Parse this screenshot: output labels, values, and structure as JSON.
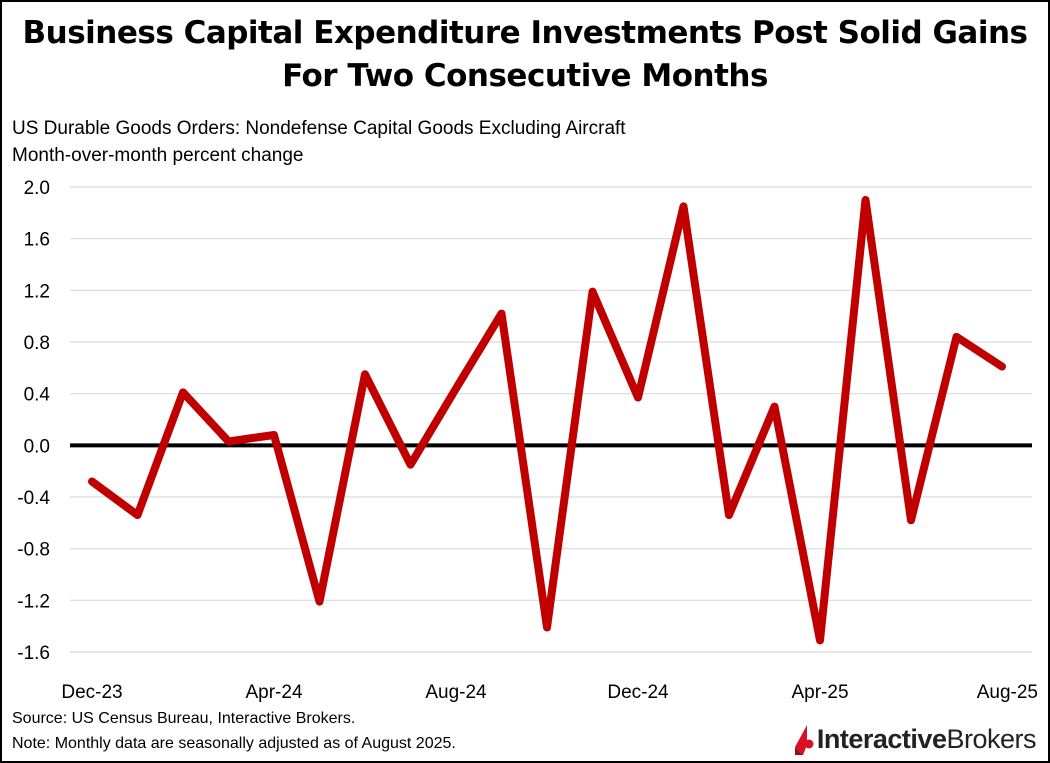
{
  "title_line1": "Business Capital Expenditure Investments Post Solid Gains",
  "title_line2": "For Two Consecutive Months",
  "subtitle1": "US Durable Goods Orders: Nondefense Capital Goods Excluding Aircraft",
  "subtitle2": "Month-over-month percent change",
  "source": "Source: US Census Bureau, Interactive Brokers.",
  "note": "Note: Monthly data are seasonally adjusted as of August 2025.",
  "logo": {
    "bold": "Interactive",
    "regular": "Brokers",
    "color": "#d81222"
  },
  "chart_data": {
    "type": "line",
    "title": "Business Capital Expenditure Investments Post Solid Gains For Two Consecutive Months",
    "ylabel": "Month-over-month percent change",
    "xlabel": "",
    "ylim": [
      -1.6,
      2.0
    ],
    "yticks": [
      "2.0",
      "1.6",
      "1.2",
      "0.8",
      "0.4",
      "0.0",
      "-0.4",
      "-0.8",
      "-1.2",
      "-1.6"
    ],
    "xtick_labels": [
      "Dec-23",
      "Apr-24",
      "Aug-24",
      "Dec-24",
      "Apr-25",
      "Aug-25"
    ],
    "grid": true,
    "line_color": "#c00000",
    "zero_line_color": "#000000",
    "categories": [
      "Dec-23",
      "Jan-24",
      "Feb-24",
      "Mar-24",
      "Apr-24",
      "May-24",
      "Jun-24",
      "Jul-24",
      "Aug-24",
      "Sep-24",
      "Oct-24",
      "Nov-24",
      "Dec-24",
      "Jan-25",
      "Feb-25",
      "Mar-25",
      "Apr-25",
      "May-25",
      "Jun-25",
      "Jul-25",
      "Aug-25"
    ],
    "values": [
      -0.28,
      -0.54,
      0.41,
      0.03,
      0.08,
      -1.21,
      0.55,
      -0.15,
      0.44,
      1.02,
      -1.41,
      1.19,
      0.37,
      1.85,
      -0.54,
      0.3,
      -1.51,
      1.9,
      -0.58,
      0.84,
      0.61
    ]
  }
}
